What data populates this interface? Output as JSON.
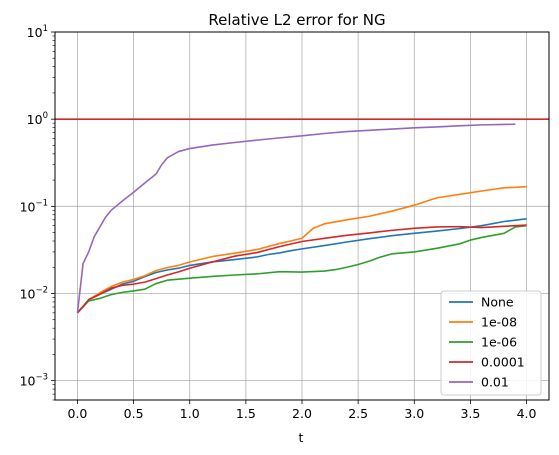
{
  "chart_data": {
    "type": "line",
    "title": "Relative L2 error for NG",
    "xlabel": "t",
    "ylabel": "",
    "xlim": [
      -0.2,
      4.2
    ],
    "ylim": [
      0.0006,
      10
    ],
    "yscale": "log",
    "grid": true,
    "legend_position": "lower-right",
    "x_ticks": [
      {
        "value": 0.0,
        "label": "0.0"
      },
      {
        "value": 0.5,
        "label": "0.5"
      },
      {
        "value": 1.0,
        "label": "1.0"
      },
      {
        "value": 1.5,
        "label": "1.5"
      },
      {
        "value": 2.0,
        "label": "2.0"
      },
      {
        "value": 2.5,
        "label": "2.5"
      },
      {
        "value": 3.0,
        "label": "3.0"
      },
      {
        "value": 3.5,
        "label": "3.5"
      },
      {
        "value": 4.0,
        "label": "4.0"
      }
    ],
    "y_ticks": [
      {
        "value": 0.001,
        "base": "10",
        "exp": "−3"
      },
      {
        "value": 0.01,
        "base": "10",
        "exp": "−2"
      },
      {
        "value": 0.1,
        "base": "10",
        "exp": "−1"
      },
      {
        "value": 1,
        "base": "10",
        "exp": "0"
      },
      {
        "value": 10,
        "base": "10",
        "exp": "1"
      }
    ],
    "reference_line": {
      "y": 1.0,
      "color": "#d62728"
    },
    "series": [
      {
        "name": "None",
        "color": "#1f77b4",
        "points": [
          [
            0,
            0.006
          ],
          [
            0.05,
            0.0071
          ],
          [
            0.1,
            0.0085
          ],
          [
            0.2,
            0.0098
          ],
          [
            0.3,
            0.0112
          ],
          [
            0.4,
            0.0128
          ],
          [
            0.5,
            0.0138
          ],
          [
            0.6,
            0.0156
          ],
          [
            0.7,
            0.0174
          ],
          [
            0.8,
            0.0186
          ],
          [
            0.9,
            0.0195
          ],
          [
            1.0,
            0.021
          ],
          [
            1.2,
            0.023
          ],
          [
            1.4,
            0.0245
          ],
          [
            1.6,
            0.0263
          ],
          [
            1.7,
            0.028
          ],
          [
            1.8,
            0.0292
          ],
          [
            1.9,
            0.031
          ],
          [
            2.0,
            0.0325
          ],
          [
            2.2,
            0.0355
          ],
          [
            2.4,
            0.039
          ],
          [
            2.6,
            0.0425
          ],
          [
            2.8,
            0.046
          ],
          [
            3.0,
            0.049
          ],
          [
            3.2,
            0.052
          ],
          [
            3.4,
            0.0555
          ],
          [
            3.6,
            0.06
          ],
          [
            3.8,
            0.067
          ],
          [
            4.0,
            0.072
          ]
        ]
      },
      {
        "name": "1e-08",
        "color": "#ff7f0e",
        "points": [
          [
            0,
            0.006
          ],
          [
            0.05,
            0.0071
          ],
          [
            0.1,
            0.0085
          ],
          [
            0.2,
            0.0102
          ],
          [
            0.3,
            0.012
          ],
          [
            0.4,
            0.0135
          ],
          [
            0.5,
            0.0145
          ],
          [
            0.6,
            0.016
          ],
          [
            0.7,
            0.0183
          ],
          [
            0.8,
            0.0198
          ],
          [
            0.9,
            0.021
          ],
          [
            1.0,
            0.023
          ],
          [
            1.2,
            0.0265
          ],
          [
            1.4,
            0.029
          ],
          [
            1.6,
            0.032
          ],
          [
            1.8,
            0.0375
          ],
          [
            1.9,
            0.04
          ],
          [
            2.0,
            0.043
          ],
          [
            2.1,
            0.056
          ],
          [
            2.2,
            0.063
          ],
          [
            2.4,
            0.07
          ],
          [
            2.6,
            0.077
          ],
          [
            2.8,
            0.088
          ],
          [
            3.0,
            0.103
          ],
          [
            3.2,
            0.125
          ],
          [
            3.4,
            0.137
          ],
          [
            3.6,
            0.15
          ],
          [
            3.8,
            0.163
          ],
          [
            4.0,
            0.168
          ]
        ]
      },
      {
        "name": "1e-06",
        "color": "#2ca02c",
        "points": [
          [
            0,
            0.006
          ],
          [
            0.05,
            0.007
          ],
          [
            0.1,
            0.0082
          ],
          [
            0.2,
            0.0088
          ],
          [
            0.3,
            0.0097
          ],
          [
            0.4,
            0.0103
          ],
          [
            0.5,
            0.0107
          ],
          [
            0.6,
            0.0112
          ],
          [
            0.7,
            0.013
          ],
          [
            0.8,
            0.0142
          ],
          [
            0.9,
            0.0146
          ],
          [
            1.0,
            0.015
          ],
          [
            1.2,
            0.0157
          ],
          [
            1.4,
            0.0163
          ],
          [
            1.6,
            0.0168
          ],
          [
            1.8,
            0.0178
          ],
          [
            2.0,
            0.0176
          ],
          [
            2.2,
            0.0181
          ],
          [
            2.3,
            0.0188
          ],
          [
            2.4,
            0.02
          ],
          [
            2.5,
            0.0215
          ],
          [
            2.6,
            0.0235
          ],
          [
            2.7,
            0.0262
          ],
          [
            2.8,
            0.0285
          ],
          [
            3.0,
            0.03
          ],
          [
            3.2,
            0.033
          ],
          [
            3.4,
            0.037
          ],
          [
            3.5,
            0.041
          ],
          [
            3.6,
            0.044
          ],
          [
            3.8,
            0.049
          ],
          [
            3.9,
            0.058
          ],
          [
            4.0,
            0.06
          ]
        ]
      },
      {
        "name": "0.0001",
        "color": "#d62728",
        "points": [
          [
            0,
            0.006
          ],
          [
            0.05,
            0.0071
          ],
          [
            0.1,
            0.0085
          ],
          [
            0.2,
            0.0098
          ],
          [
            0.3,
            0.0115
          ],
          [
            0.4,
            0.0124
          ],
          [
            0.5,
            0.0128
          ],
          [
            0.6,
            0.0135
          ],
          [
            0.7,
            0.0148
          ],
          [
            0.8,
            0.0163
          ],
          [
            0.9,
            0.0177
          ],
          [
            1.0,
            0.0195
          ],
          [
            1.2,
            0.023
          ],
          [
            1.4,
            0.0268
          ],
          [
            1.6,
            0.0295
          ],
          [
            1.8,
            0.0345
          ],
          [
            2.0,
            0.0395
          ],
          [
            2.2,
            0.043
          ],
          [
            2.4,
            0.0465
          ],
          [
            2.6,
            0.0495
          ],
          [
            2.8,
            0.053
          ],
          [
            3.0,
            0.056
          ],
          [
            3.2,
            0.058
          ],
          [
            3.4,
            0.0585
          ],
          [
            3.6,
            0.057
          ],
          [
            3.8,
            0.059
          ],
          [
            4.0,
            0.061
          ]
        ]
      },
      {
        "name": "0.01",
        "color": "#9467bd",
        "points": [
          [
            0,
            0.006
          ],
          [
            0.05,
            0.022
          ],
          [
            0.1,
            0.03
          ],
          [
            0.15,
            0.045
          ],
          [
            0.2,
            0.058
          ],
          [
            0.25,
            0.075
          ],
          [
            0.3,
            0.09
          ],
          [
            0.4,
            0.115
          ],
          [
            0.5,
            0.145
          ],
          [
            0.6,
            0.185
          ],
          [
            0.7,
            0.235
          ],
          [
            0.75,
            0.3
          ],
          [
            0.8,
            0.36
          ],
          [
            0.9,
            0.425
          ],
          [
            1.0,
            0.46
          ],
          [
            1.2,
            0.505
          ],
          [
            1.4,
            0.54
          ],
          [
            1.6,
            0.575
          ],
          [
            1.8,
            0.61
          ],
          [
            2.0,
            0.645
          ],
          [
            2.2,
            0.685
          ],
          [
            2.4,
            0.72
          ],
          [
            2.6,
            0.745
          ],
          [
            2.8,
            0.77
          ],
          [
            3.0,
            0.795
          ],
          [
            3.2,
            0.815
          ],
          [
            3.4,
            0.84
          ],
          [
            3.6,
            0.86
          ],
          [
            3.8,
            0.87
          ],
          [
            3.9,
            0.875
          ]
        ]
      }
    ]
  }
}
